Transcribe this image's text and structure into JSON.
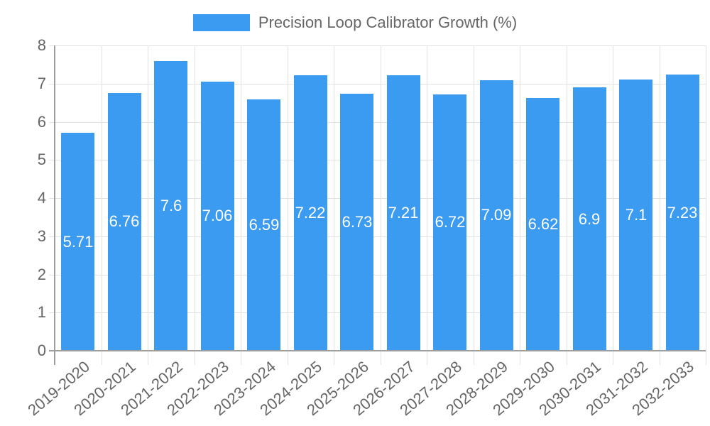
{
  "legend": {
    "label": "Precision Loop Calibrator Growth (%)",
    "color": "#3a9bf0"
  },
  "y_axis": {
    "ticks": [
      "0",
      "1",
      "2",
      "3",
      "4",
      "5",
      "6",
      "7",
      "8"
    ]
  },
  "bars": [
    {
      "category": "2019-2020",
      "value": 5.71,
      "label": "5.71"
    },
    {
      "category": "2020-2021",
      "value": 6.76,
      "label": "6.76"
    },
    {
      "category": "2021-2022",
      "value": 7.6,
      "label": "7.6"
    },
    {
      "category": "2022-2023",
      "value": 7.06,
      "label": "7.06"
    },
    {
      "category": "2023-2024",
      "value": 6.59,
      "label": "6.59"
    },
    {
      "category": "2024-2025",
      "value": 7.22,
      "label": "7.22"
    },
    {
      "category": "2025-2026",
      "value": 6.73,
      "label": "6.73"
    },
    {
      "category": "2026-2027",
      "value": 7.21,
      "label": "7.21"
    },
    {
      "category": "2027-2028",
      "value": 6.72,
      "label": "6.72"
    },
    {
      "category": "2028-2029",
      "value": 7.09,
      "label": "7.09"
    },
    {
      "category": "2029-2030",
      "value": 6.62,
      "label": "6.62"
    },
    {
      "category": "2030-2031",
      "value": 6.9,
      "label": "6.9"
    },
    {
      "category": "2031-2032",
      "value": 7.1,
      "label": "7.1"
    },
    {
      "category": "2032-2033",
      "value": 7.23,
      "label": "7.23"
    }
  ],
  "chart_data": {
    "type": "bar",
    "title": "",
    "categories": [
      "2019-2020",
      "2020-2021",
      "2021-2022",
      "2022-2023",
      "2023-2024",
      "2024-2025",
      "2025-2026",
      "2026-2027",
      "2027-2028",
      "2028-2029",
      "2029-2030",
      "2030-2031",
      "2031-2032",
      "2032-2033"
    ],
    "series": [
      {
        "name": "Precision Loop Calibrator Growth (%)",
        "values": [
          5.71,
          6.76,
          7.6,
          7.06,
          6.59,
          7.22,
          6.73,
          7.21,
          6.72,
          7.09,
          6.62,
          6.9,
          7.1,
          7.23
        ],
        "color": "#3a9bf0"
      }
    ],
    "xlabel": "",
    "ylabel": "",
    "ylim": [
      0,
      8
    ],
    "yticks": [
      0,
      1,
      2,
      3,
      4,
      5,
      6,
      7,
      8
    ],
    "grid": true,
    "legend_position": "top",
    "data_labels": true
  }
}
